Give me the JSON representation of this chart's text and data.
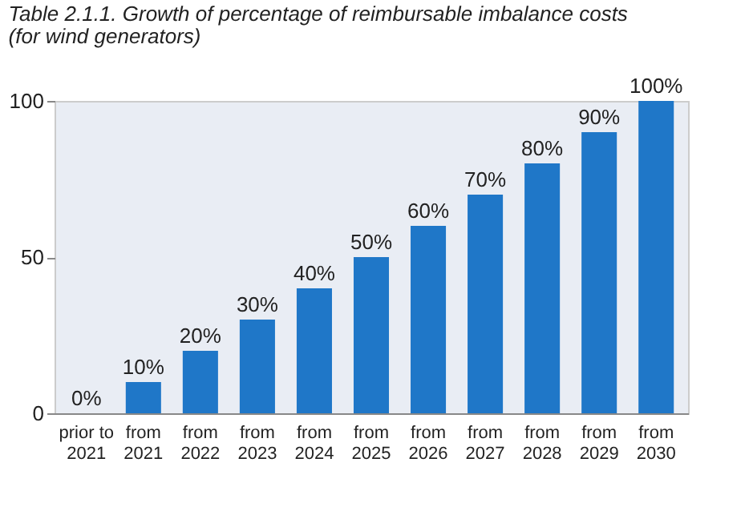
{
  "chart_data": {
    "type": "bar",
    "title": "Table 2.1.1. Growth of percentage of reimbursable imbalance costs",
    "subtitle": "(for wind generators)",
    "categories": [
      "prior to 2021",
      "from 2021",
      "from 2022",
      "from 2023",
      "from 2024",
      "from 2025",
      "from 2026",
      "from 2027",
      "from 2028",
      "from 2029",
      "from 2030"
    ],
    "values": [
      0,
      10,
      20,
      30,
      40,
      50,
      60,
      70,
      80,
      90,
      100
    ],
    "value_labels": [
      "0%",
      "10%",
      "20%",
      "30%",
      "40%",
      "50%",
      "60%",
      "70%",
      "80%",
      "90%",
      "100%"
    ],
    "color": "#1f77c8",
    "ylim": [
      0,
      100
    ],
    "yticks": [
      0,
      50,
      100
    ],
    "grid": false
  }
}
